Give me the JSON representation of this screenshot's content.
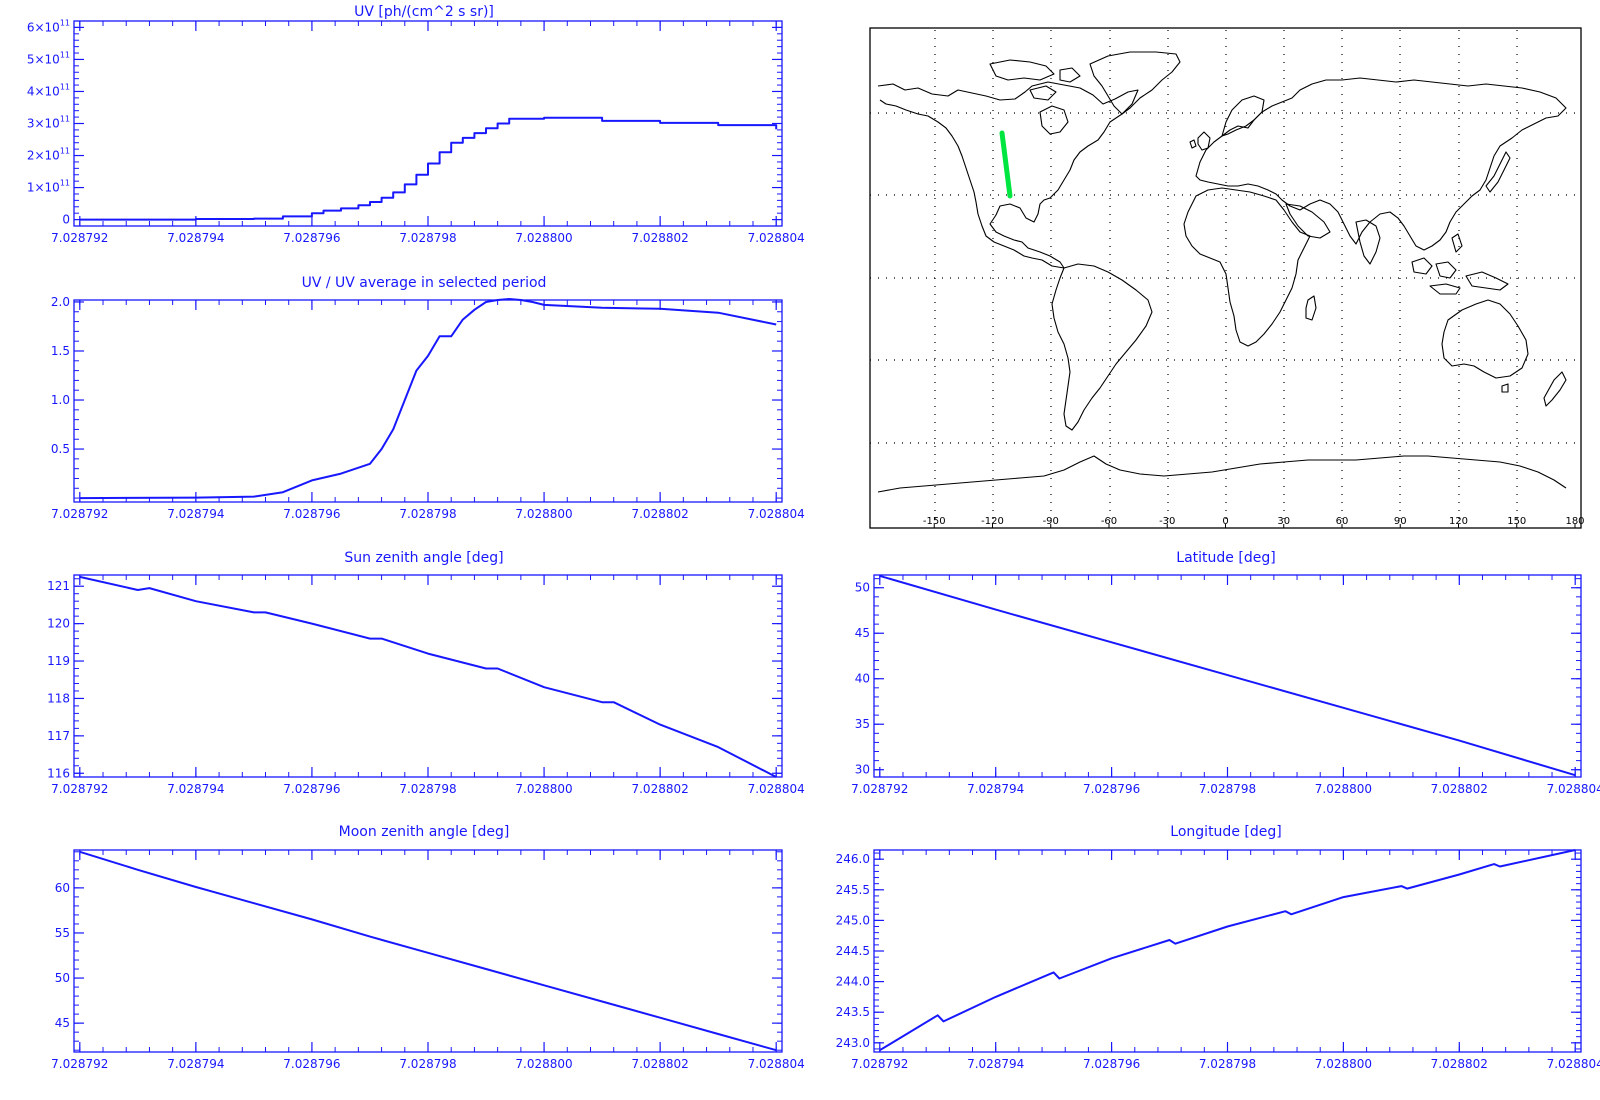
{
  "colors": {
    "axis": "#1818ff",
    "line": "#1818ff",
    "map": "#000000",
    "track": "#00e640",
    "grid": "#000000"
  },
  "chart_data": [
    {
      "id": "uv",
      "type": "line",
      "title": "UV [ph/(cm^2 s sr)]",
      "xlabel": "",
      "ylabel": "",
      "xlim": [
        7.0287919,
        7.0288041
      ],
      "ylim": [
        -20000000000,
        620000000000
      ],
      "x_ticks": [
        7.028792,
        7.028794,
        7.028796,
        7.028798,
        7.0288,
        7.028802,
        7.028804
      ],
      "x_tick_labels": [
        "7.028792",
        "7.028794",
        "7.028796",
        "7.028798",
        "7.028800",
        "7.028802",
        "7.028804"
      ],
      "y_ticks": [
        0,
        100000000000,
        200000000000,
        300000000000,
        400000000000,
        500000000000,
        600000000000
      ],
      "y_tick_labels": [
        {
          "base": "0",
          "exp": ""
        },
        {
          "base": "1×10",
          "exp": "11"
        },
        {
          "base": "2×10",
          "exp": "11"
        },
        {
          "base": "3×10",
          "exp": "11"
        },
        {
          "base": "4×10",
          "exp": "11"
        },
        {
          "base": "5×10",
          "exp": "11"
        },
        {
          "base": "6×10",
          "exp": "11"
        }
      ],
      "step": true,
      "series": [
        {
          "x": [
            7.028792,
            7.028794,
            7.028795,
            7.0287955,
            7.028796,
            7.0287962,
            7.0287965,
            7.0287968,
            7.028797,
            7.0287972,
            7.0287974,
            7.0287976,
            7.0287978,
            7.028798,
            7.0287982,
            7.0287984,
            7.0287986,
            7.0287988,
            7.028799,
            7.0287992,
            7.0287994,
            7.0288,
            7.028801,
            7.028802,
            7.028803,
            7.028804
          ],
          "y": [
            0,
            2000000000,
            3000000000,
            10000000000,
            20000000000,
            28000000000,
            35000000000,
            45000000000,
            55000000000,
            68000000000,
            85000000000,
            110000000000,
            140000000000,
            175000000000,
            210000000000,
            240000000000,
            255000000000,
            270000000000,
            285000000000,
            300000000000,
            315000000000,
            318000000000,
            308000000000,
            302000000000,
            295000000000,
            282000000000
          ]
        }
      ]
    },
    {
      "id": "ratio",
      "type": "line",
      "title": "UV / UV average in selected period",
      "xlabel": "",
      "ylabel": "",
      "xlim": [
        7.0287919,
        7.0288041
      ],
      "ylim": [
        -0.04,
        2.02
      ],
      "x_ticks": [
        7.028792,
        7.028794,
        7.028796,
        7.028798,
        7.0288,
        7.028802,
        7.028804
      ],
      "x_tick_labels": [
        "7.028792",
        "7.028794",
        "7.028796",
        "7.028798",
        "7.028800",
        "7.028802",
        "7.028804"
      ],
      "y_ticks": [
        0.5,
        1.0,
        1.5,
        2.0
      ],
      "y_tick_labels": [
        "0.5",
        "1.0",
        "1.5",
        "2.0"
      ],
      "series": [
        {
          "x": [
            7.028792,
            7.028794,
            7.028795,
            7.0287955,
            7.028796,
            7.0287965,
            7.028797,
            7.0287972,
            7.0287974,
            7.0287976,
            7.0287978,
            7.028798,
            7.0287982,
            7.0287984,
            7.0287986,
            7.0287988,
            7.028799,
            7.0287992,
            7.0287994,
            7.0287996,
            7.0287998,
            7.0288,
            7.028801,
            7.028802,
            7.028803,
            7.028804
          ],
          "y": [
            0,
            0.005,
            0.015,
            0.06,
            0.18,
            0.25,
            0.35,
            0.5,
            0.7,
            1.0,
            1.3,
            1.45,
            1.65,
            1.65,
            1.82,
            1.92,
            2.0,
            2.02,
            2.03,
            2.02,
            2.0,
            1.97,
            1.94,
            1.93,
            1.89,
            1.77
          ]
        }
      ]
    },
    {
      "id": "sza",
      "type": "line",
      "title": "Sun zenith angle [deg]",
      "xlabel": "",
      "ylabel": "",
      "xlim": [
        7.0287919,
        7.0288041
      ],
      "ylim": [
        115.9,
        121.3
      ],
      "x_ticks": [
        7.028792,
        7.028794,
        7.028796,
        7.028798,
        7.0288,
        7.028802,
        7.028804
      ],
      "x_tick_labels": [
        "7.028792",
        "7.028794",
        "7.028796",
        "7.028798",
        "7.028800",
        "7.028802",
        "7.028804"
      ],
      "y_ticks": [
        116,
        117,
        118,
        119,
        120,
        121
      ],
      "y_tick_labels": [
        "116",
        "117",
        "118",
        "119",
        "120",
        "121"
      ],
      "series": [
        {
          "x": [
            7.028792,
            7.028793,
            7.0287932,
            7.028794,
            7.028795,
            7.0287952,
            7.028796,
            7.028797,
            7.0287972,
            7.028798,
            7.028799,
            7.0287992,
            7.0288,
            7.028801,
            7.0288012,
            7.028802,
            7.028803,
            7.028804
          ],
          "y": [
            121.25,
            120.9,
            120.95,
            120.6,
            120.3,
            120.3,
            120.0,
            119.6,
            119.6,
            119.2,
            118.8,
            118.8,
            118.3,
            117.9,
            117.9,
            117.3,
            116.7,
            115.9
          ]
        }
      ]
    },
    {
      "id": "lat",
      "type": "line",
      "title": "Latitude [deg]",
      "xlabel": "",
      "ylabel": "",
      "xlim": [
        7.0287919,
        7.0288041
      ],
      "ylim": [
        29.2,
        51.4
      ],
      "x_ticks": [
        7.028792,
        7.028794,
        7.028796,
        7.028798,
        7.0288,
        7.028802,
        7.028804
      ],
      "x_tick_labels": [
        "7.028792",
        "7.028794",
        "7.028796",
        "7.028798",
        "7.028800",
        "7.028802",
        "7.028804"
      ],
      "y_ticks": [
        30,
        35,
        40,
        45,
        50
      ],
      "y_tick_labels": [
        "30",
        "35",
        "40",
        "45",
        "50"
      ],
      "series": [
        {
          "x": [
            7.028792,
            7.028794,
            7.028796,
            7.028798,
            7.0288,
            7.028802,
            7.028804
          ],
          "y": [
            51.3,
            47.6,
            44.0,
            40.4,
            36.8,
            33.2,
            29.4
          ]
        }
      ]
    },
    {
      "id": "mza",
      "type": "line",
      "title": "Moon zenith angle [deg]",
      "xlabel": "",
      "ylabel": "",
      "xlim": [
        7.0287919,
        7.0288041
      ],
      "ylim": [
        41.8,
        64.2
      ],
      "x_ticks": [
        7.028792,
        7.028794,
        7.028796,
        7.028798,
        7.0288,
        7.028802,
        7.028804
      ],
      "x_tick_labels": [
        "7.028792",
        "7.028794",
        "7.028796",
        "7.028798",
        "7.028800",
        "7.028802",
        "7.028804"
      ],
      "y_ticks": [
        45,
        50,
        55,
        60
      ],
      "y_tick_labels": [
        "45",
        "50",
        "55",
        "60"
      ],
      "series": [
        {
          "x": [
            7.028792,
            7.028793,
            7.028794,
            7.028795,
            7.028796,
            7.028797,
            7.028798,
            7.028799,
            7.0288,
            7.028801,
            7.028802,
            7.028803,
            7.028804
          ],
          "y": [
            64.0,
            62.0,
            60.1,
            58.3,
            56.5,
            54.6,
            52.8,
            51.0,
            49.2,
            47.4,
            45.6,
            43.8,
            42.0
          ]
        }
      ]
    },
    {
      "id": "lon",
      "type": "line",
      "title": "Longitude [deg]",
      "xlabel": "",
      "ylabel": "",
      "xlim": [
        7.0287919,
        7.0288041
      ],
      "ylim": [
        242.85,
        246.15
      ],
      "x_ticks": [
        7.028792,
        7.028794,
        7.028796,
        7.028798,
        7.0288,
        7.028802,
        7.028804
      ],
      "x_tick_labels": [
        "7.028792",
        "7.028794",
        "7.028796",
        "7.028798",
        "7.028800",
        "7.028802",
        "7.028804"
      ],
      "y_ticks": [
        243.0,
        243.5,
        244.0,
        244.5,
        245.0,
        245.5,
        246.0
      ],
      "y_tick_labels": [
        "243.0",
        "243.5",
        "244.0",
        "244.5",
        "245.0",
        "245.5",
        "246.0"
      ],
      "series": [
        {
          "x": [
            7.028792,
            7.028793,
            7.0287931,
            7.028794,
            7.028795,
            7.0287951,
            7.028796,
            7.028797,
            7.0287971,
            7.028798,
            7.028799,
            7.0287991,
            7.0288,
            7.028801,
            7.0288011,
            7.028802,
            7.0288026,
            7.0288027,
            7.028804
          ],
          "y": [
            242.88,
            243.45,
            243.35,
            243.75,
            244.15,
            244.05,
            244.38,
            244.68,
            244.62,
            244.9,
            245.15,
            245.1,
            245.38,
            245.56,
            245.52,
            245.75,
            245.92,
            245.88,
            246.15
          ]
        }
      ]
    }
  ],
  "map": {
    "x_tick_labels": [
      "-150",
      "-120",
      "-90",
      "-60",
      "-30",
      "0",
      "30",
      "60",
      "90",
      "120",
      "150",
      "180"
    ],
    "track": {
      "lon": [
        -121,
        -117
      ],
      "lat": [
        51.3,
        29.4
      ]
    }
  }
}
